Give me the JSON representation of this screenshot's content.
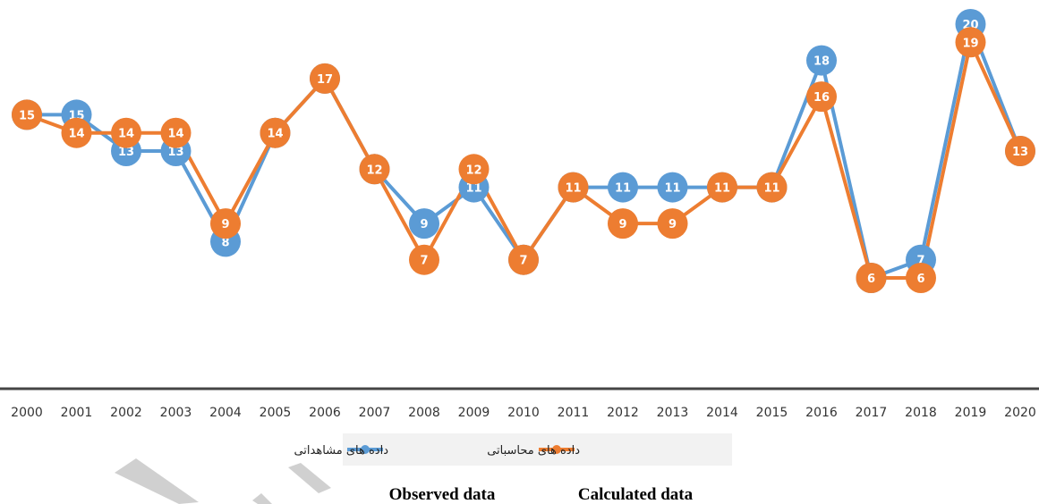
{
  "chart_data": {
    "type": "line",
    "x": [
      2000,
      2001,
      2002,
      2003,
      2004,
      2005,
      2006,
      2007,
      2008,
      2009,
      2010,
      2011,
      2012,
      2013,
      2014,
      2015,
      2016,
      2017,
      2018,
      2019,
      2020
    ],
    "series": [
      {
        "name": "داده های مشاهداتی",
        "color": "#5b9bd5",
        "values": [
          15,
          15,
          13,
          13,
          8,
          14,
          17,
          12,
          9,
          11,
          7,
          11,
          11,
          11,
          11,
          11,
          18,
          6,
          7,
          20,
          13
        ]
      },
      {
        "name": "داده های محاسباتی",
        "color": "#ed7d31",
        "values": [
          15,
          14,
          14,
          14,
          9,
          14,
          17,
          12,
          7,
          12,
          7,
          11,
          9,
          9,
          11,
          11,
          16,
          6,
          6,
          19,
          13
        ]
      }
    ],
    "ylim": [
      0,
      21
    ],
    "grid": false,
    "legend_position": "bottom",
    "data_labels": true
  },
  "captions": {
    "observed": "Observed data",
    "calculated": "Calculated data"
  }
}
